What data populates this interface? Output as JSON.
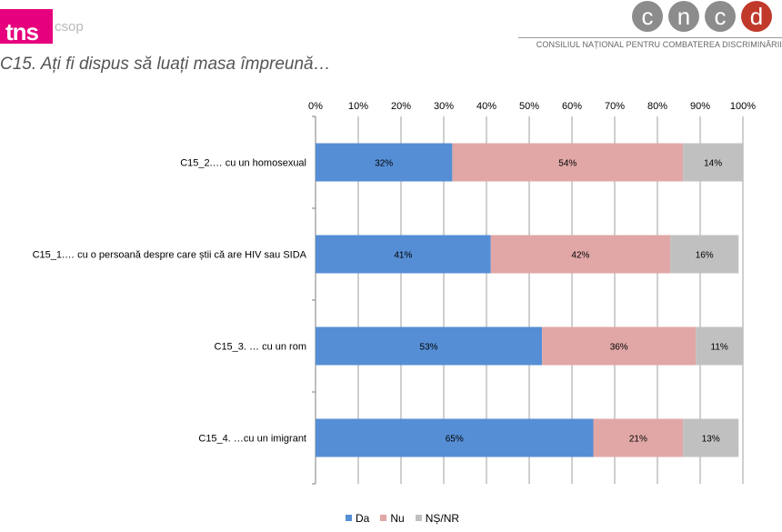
{
  "header": {
    "logo_left_tns": "tns",
    "logo_left_csop": "csop",
    "logo_right_letters": [
      "c",
      "n",
      "c",
      "d"
    ],
    "org_name": "CONSILIUL NAȚIONAL PENTRU COMBATEREA DISCRIMINĂRII"
  },
  "page_title": "C15. Ați fi dispus să luați masa împreună…",
  "chart_data": {
    "type": "bar",
    "orientation": "horizontal",
    "stacked": true,
    "stack_mode": "percent",
    "title": "",
    "xlabel": "",
    "ylabel": "",
    "xlim": [
      0,
      100
    ],
    "x_axis_position": "top",
    "x_ticks": [
      "0%",
      "10%",
      "20%",
      "30%",
      "40%",
      "50%",
      "60%",
      "70%",
      "80%",
      "90%",
      "100%"
    ],
    "grid": true,
    "legend_position": "bottom",
    "categories": [
      "C15_2.… cu un homosexual",
      "C15_1.… cu o persoană despre care știi că are HIV sau SIDA",
      "C15_3. … cu un rom",
      "C15_4. …cu un imigrant"
    ],
    "series": [
      {
        "name": "Da",
        "color": "#558ed5",
        "values": [
          32,
          41,
          53,
          65
        ],
        "labels": [
          "32%",
          "41%",
          "53%",
          "65%"
        ]
      },
      {
        "name": "Nu",
        "color": "#e0a7a6",
        "values": [
          54,
          42,
          36,
          21
        ],
        "labels": [
          "54%",
          "42%",
          "36%",
          "21%"
        ]
      },
      {
        "name": "NȘ/NR",
        "color": "#c0c0c0",
        "values": [
          14,
          16,
          11,
          13
        ],
        "labels": [
          "14%",
          "16%",
          "11%",
          "13%"
        ]
      }
    ]
  },
  "colors": {
    "tns_pink": "#e6007e",
    "cncd_grey": "#8c8c8c",
    "cncd_red": "#c0392b"
  }
}
